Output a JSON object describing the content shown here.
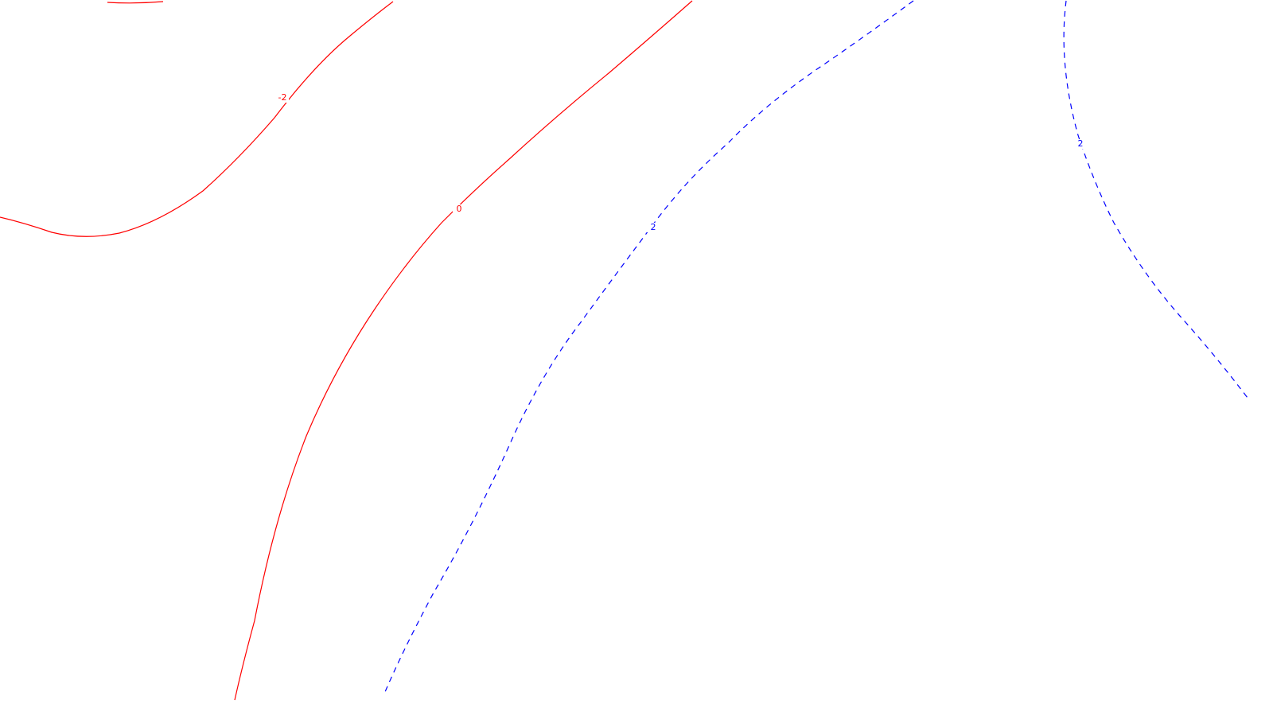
{
  "chart_data": {
    "type": "contour",
    "title": "",
    "xlabel": "",
    "ylabel": "",
    "grid": false,
    "legend": "none",
    "levels": [
      {
        "value": -2,
        "label": "-2",
        "color": "#ff0000",
        "style": "solid",
        "segments": 2
      },
      {
        "value": 0,
        "label": "0",
        "color": "#ff0000",
        "style": "solid",
        "segments": 1
      },
      {
        "value": 2,
        "label": "2",
        "color": "#0000ff",
        "style": "dashed",
        "segments": 2
      }
    ]
  }
}
